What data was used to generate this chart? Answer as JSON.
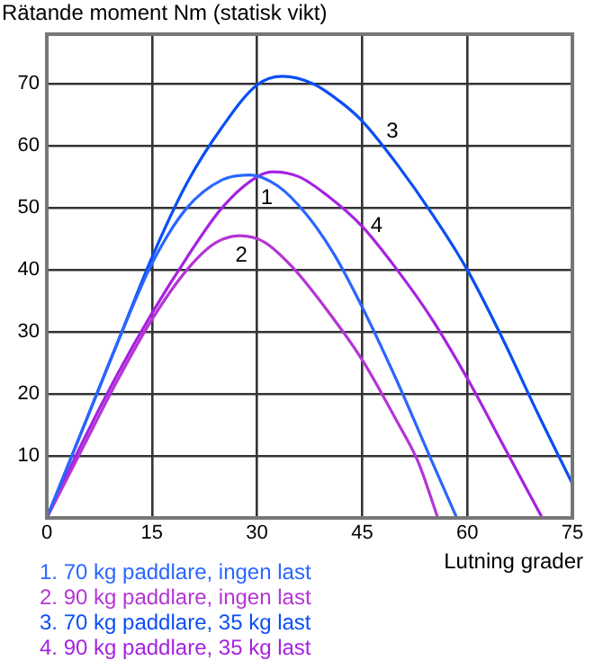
{
  "chart_data": {
    "type": "line",
    "ylabel": "Rätande moment Nm (statisk vikt)",
    "xlabel": "Lutning grader",
    "xlim": [
      0,
      75
    ],
    "xticks": [
      0,
      15,
      30,
      45,
      60,
      75
    ],
    "ylim": [
      0,
      78
    ],
    "yticks": [
      10,
      20,
      30,
      40,
      50,
      60,
      70
    ],
    "grid": true,
    "legend": "bottom left",
    "marker": "none",
    "line_style": "solid",
    "series": [
      {
        "name": "1. 70 kg paddlare, ingen last",
        "color": "#2a66ff",
        "x": [
          0,
          5,
          10,
          15,
          20,
          25,
          29,
          33,
          37,
          41,
          45,
          50,
          55,
          58.5
        ],
        "values": [
          0,
          14,
          28,
          41,
          50,
          54.5,
          55.3,
          53.5,
          49,
          42.5,
          34,
          22,
          9,
          0
        ]
      },
      {
        "name": "2. 90 kg paddlare, ingen last",
        "color": "#b535d5",
        "x": [
          0,
          5,
          10,
          15,
          20,
          24,
          27.5,
          31,
          35,
          40,
          45,
          50,
          53,
          55.8
        ],
        "values": [
          0,
          11,
          22,
          32,
          40,
          44.3,
          45.5,
          44.5,
          40.5,
          33.5,
          25.5,
          15.5,
          9,
          0
        ]
      },
      {
        "name": "3. 70 kg paddlare, 35 kg last",
        "color": "#0a4ef5",
        "x": [
          0,
          5,
          10,
          15,
          20,
          25,
          30,
          33.6,
          38,
          42,
          45,
          50,
          55,
          60,
          65,
          70,
          75
        ],
        "values": [
          0,
          14,
          28,
          42,
          54,
          63,
          69.8,
          71.2,
          70,
          67,
          64,
          57,
          49,
          40,
          29,
          17,
          5.5
        ]
      },
      {
        "name": "4. 90 kg paddlare, 35 kg last",
        "color": "#a522e0",
        "x": [
          0,
          5,
          10,
          15,
          20,
          25,
          30,
          32.3,
          36,
          40,
          45,
          50,
          55,
          60,
          65,
          70.7
        ],
        "values": [
          0,
          12,
          23,
          33,
          42,
          50,
          55,
          55.8,
          55,
          52,
          47,
          40,
          32,
          22.5,
          12,
          0
        ]
      }
    ],
    "annotations": [
      {
        "text": "1",
        "x": 31.4,
        "y": 54.2
      },
      {
        "text": "2",
        "x": 27.5,
        "y": 45.5
      },
      {
        "text": "3",
        "x": 47,
        "y": 61.2
      },
      {
        "text": "4",
        "x": 45,
        "y": 47
      }
    ]
  }
}
